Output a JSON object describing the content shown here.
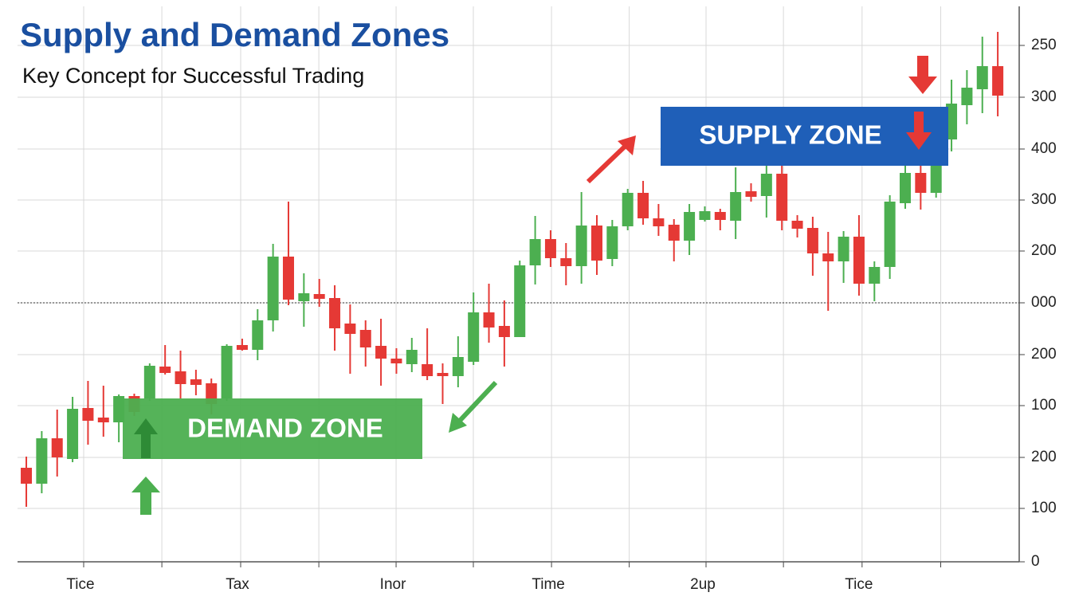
{
  "chart_data": {
    "type": "candlestick",
    "title": "Supply and Demand Zones",
    "subtitle": "Key Concept for Successful Trading",
    "annotations": [
      "DEMAND ZONE",
      "SUPPLY ZONE"
    ],
    "up_color": "#4caf50",
    "down_color": "#e53935",
    "x": [
      0,
      1,
      2,
      3,
      4,
      5,
      6,
      7,
      8,
      9,
      10,
      11,
      12,
      13,
      14,
      15,
      16,
      17,
      18,
      19,
      20,
      21,
      22,
      23,
      24,
      25,
      26,
      27,
      28,
      29,
      30,
      31,
      32,
      33,
      34,
      35,
      36,
      37,
      38,
      39,
      40,
      41,
      42,
      43,
      44,
      45,
      46,
      47,
      48,
      49,
      50,
      51,
      52,
      53,
      54,
      55,
      56,
      57,
      58,
      59,
      60,
      61,
      62,
      63
    ],
    "open": [
      118,
      98,
      155,
      129,
      193,
      181,
      175,
      208,
      205,
      245,
      239,
      229,
      224,
      205,
      272,
      266,
      303,
      383,
      327,
      336,
      331,
      299,
      291,
      271,
      255,
      248,
      248,
      237,
      233,
      251,
      313,
      296,
      282,
      372,
      405,
      381,
      371,
      422,
      380,
      421,
      463,
      431,
      423,
      403,
      429,
      439,
      428,
      465,
      459,
      487,
      428,
      419,
      387,
      377,
      408,
      349,
      370,
      450,
      488,
      463,
      530,
      573,
      593,
      622
    ],
    "high": [
      132,
      164,
      191,
      207,
      227,
      221,
      210,
      211,
      249,
      272,
      265,
      241,
      230,
      273,
      280,
      317,
      399,
      452,
      362,
      355,
      347,
      323,
      303,
      305,
      268,
      281,
      293,
      249,
      283,
      338,
      349,
      328,
      378,
      434,
      416,
      400,
      464,
      435,
      429,
      468,
      478,
      449,
      430,
      449,
      446,
      443,
      495,
      475,
      508,
      505,
      435,
      433,
      414,
      415,
      435,
      377,
      460,
      498,
      515,
      555,
      605,
      617,
      659,
      665
    ],
    "low": [
      69,
      86,
      107,
      125,
      147,
      157,
      150,
      183,
      202,
      235,
      205,
      209,
      185,
      202,
      265,
      253,
      289,
      322,
      295,
      320,
      265,
      236,
      245,
      221,
      236,
      238,
      228,
      198,
      219,
      247,
      275,
      245,
      282,
      348,
      370,
      347,
      349,
      360,
      371,
      416,
      423,
      409,
      377,
      385,
      427,
      416,
      405,
      452,
      432,
      416,
      407,
      359,
      315,
      350,
      334,
      327,
      355,
      443,
      442,
      457,
      515,
      549,
      563,
      559
    ],
    "close": [
      98,
      155,
      131,
      192,
      177,
      175,
      208,
      188,
      246,
      237,
      223,
      222,
      198,
      271,
      266,
      303,
      383,
      329,
      337,
      330,
      293,
      286,
      269,
      255,
      249,
      266,
      233,
      233,
      257,
      313,
      294,
      282,
      372,
      405,
      381,
      371,
      422,
      378,
      421,
      463,
      431,
      421,
      403,
      439,
      440,
      429,
      464,
      458,
      487,
      428,
      418,
      387,
      377,
      408,
      349,
      370,
      452,
      488,
      463,
      530,
      575,
      595,
      622,
      585
    ],
    "reference_line": 325,
    "xlim": [
      -0.57,
      64.39
    ],
    "xticks": [
      {
        "value": 3.72,
        "label": "Tice"
      },
      {
        "value": 8.79,
        "label": null
      },
      {
        "value": 13.9,
        "label": "Tax"
      },
      {
        "value": 18.97,
        "label": null
      },
      {
        "value": 23.98,
        "label": "Inor"
      },
      {
        "value": 28.99,
        "label": null
      },
      {
        "value": 34.06,
        "label": "Time"
      },
      {
        "value": 39.1,
        "label": null
      },
      {
        "value": 44.08,
        "label": "2up"
      },
      {
        "value": 49.1,
        "label": null
      },
      {
        "value": 54.2,
        "label": "Tice"
      },
      {
        "value": 59.3,
        "label": null
      }
    ],
    "ylim": [
      0,
      680
    ],
    "yticks": [
      0,
      {
        "value": 67,
        "label": "100"
      },
      {
        "value": 131,
        "label": "200"
      },
      {
        "value": 196,
        "label": "100"
      },
      {
        "value": 260,
        "label": "200"
      },
      {
        "value": 325,
        "label": "000"
      },
      {
        "value": 390,
        "label": "200"
      },
      {
        "value": 454,
        "label": "300"
      },
      {
        "value": 518,
        "label": "400"
      },
      {
        "value": 583,
        "label": "300"
      },
      {
        "value": 648,
        "label": "250"
      }
    ],
    "grid": true
  }
}
